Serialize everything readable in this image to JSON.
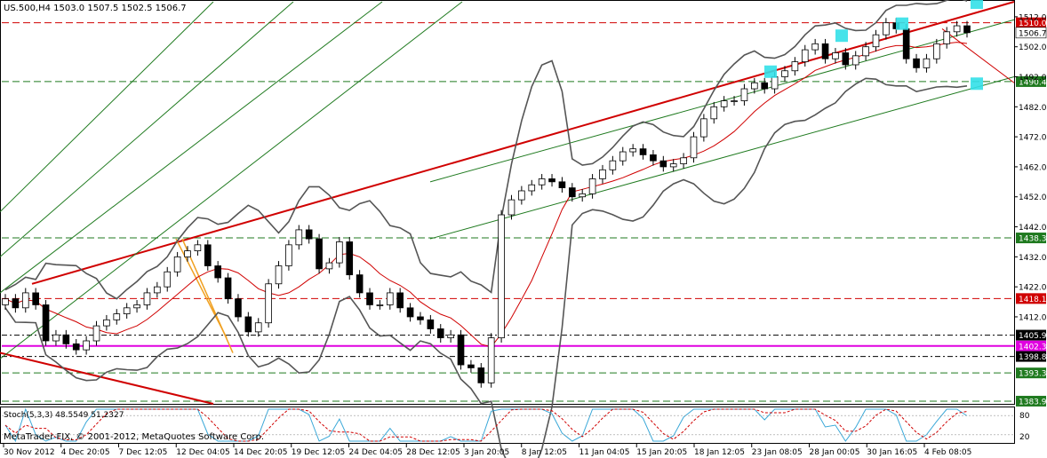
{
  "header": {
    "symbol_info": "US.500,H4  1503.0 1507.5 1502.5 1506.7"
  },
  "footer": {
    "copyright": "MetaTrader FIX, © 2001-2012, MetaQuotes Software Corp."
  },
  "stoch": {
    "label": "Stoch(5,3,3) 48.5549 51.2327",
    "levels": [
      "80",
      "20"
    ]
  },
  "colors": {
    "up_candle": "#ffffff",
    "down_candle": "#000000",
    "support": "#1f7a1f",
    "resistance": "#d00000",
    "magenta": "#e000e0",
    "highlight": "#33e0e8"
  },
  "chart_data": {
    "type": "candlestick",
    "x_tick_labels": [
      "30 Nov 2012",
      "4 Dec 20:05",
      "7 Dec 12:05",
      "12 Dec 04:05",
      "14 Dec 20:05",
      "19 Dec 12:05",
      "24 Dec 04:05",
      "28 Dec 12:05",
      "3 Jan 20:05",
      "8 Jan 12:05",
      "11 Jan 04:05",
      "15 Jan 20:05",
      "18 Jan 12:05",
      "23 Jan 08:05",
      "28 Jan 00:05",
      "30 Jan 16:05",
      "4 Feb 08:05"
    ],
    "y_ticks": [
      1512,
      1502,
      1492,
      1482,
      1472,
      1462,
      1452,
      1442,
      1432,
      1422,
      1412
    ],
    "ylim": [
      1383,
      1517
    ],
    "current_price": 1506.7,
    "levels": [
      {
        "value": 1510.0,
        "color": "red"
      },
      {
        "value": 1490.4,
        "color": "green"
      },
      {
        "value": 1438.3,
        "color": "green"
      },
      {
        "value": 1418.1,
        "color": "red"
      },
      {
        "value": 1405.9,
        "color": "black"
      },
      {
        "value": 1402.3,
        "color": "magenta"
      },
      {
        "value": 1398.8,
        "color": "black"
      },
      {
        "value": 1393.3,
        "color": "green"
      },
      {
        "value": 1383.9,
        "color": "green"
      }
    ],
    "close_series": [
      1418,
      1415,
      1420,
      1416,
      1404,
      1406,
      1403,
      1401,
      1404,
      1409,
      1411,
      1413,
      1415,
      1416,
      1420,
      1422,
      1427,
      1432,
      1434,
      1436,
      1429,
      1425,
      1418,
      1412,
      1407,
      1410,
      1423,
      1429,
      1436,
      1441,
      1438,
      1428,
      1430,
      1437,
      1426,
      1420,
      1416,
      1416,
      1420,
      1415,
      1412,
      1411,
      1408,
      1405,
      1406,
      1396,
      1395,
      1390,
      1405,
      1446,
      1451,
      1454,
      1456,
      1458,
      1457,
      1455,
      1452,
      1453,
      1458,
      1461,
      1464,
      1467,
      1468,
      1466,
      1464,
      1462,
      1463,
      1465,
      1472,
      1478,
      1482,
      1484,
      1484,
      1488,
      1490,
      1488,
      1492,
      1494,
      1497,
      1501,
      1503,
      1498,
      1500,
      1496,
      1499,
      1502,
      1506,
      1510,
      1508,
      1498,
      1495,
      1498,
      1503,
      1507,
      1509,
      1506.7
    ]
  }
}
